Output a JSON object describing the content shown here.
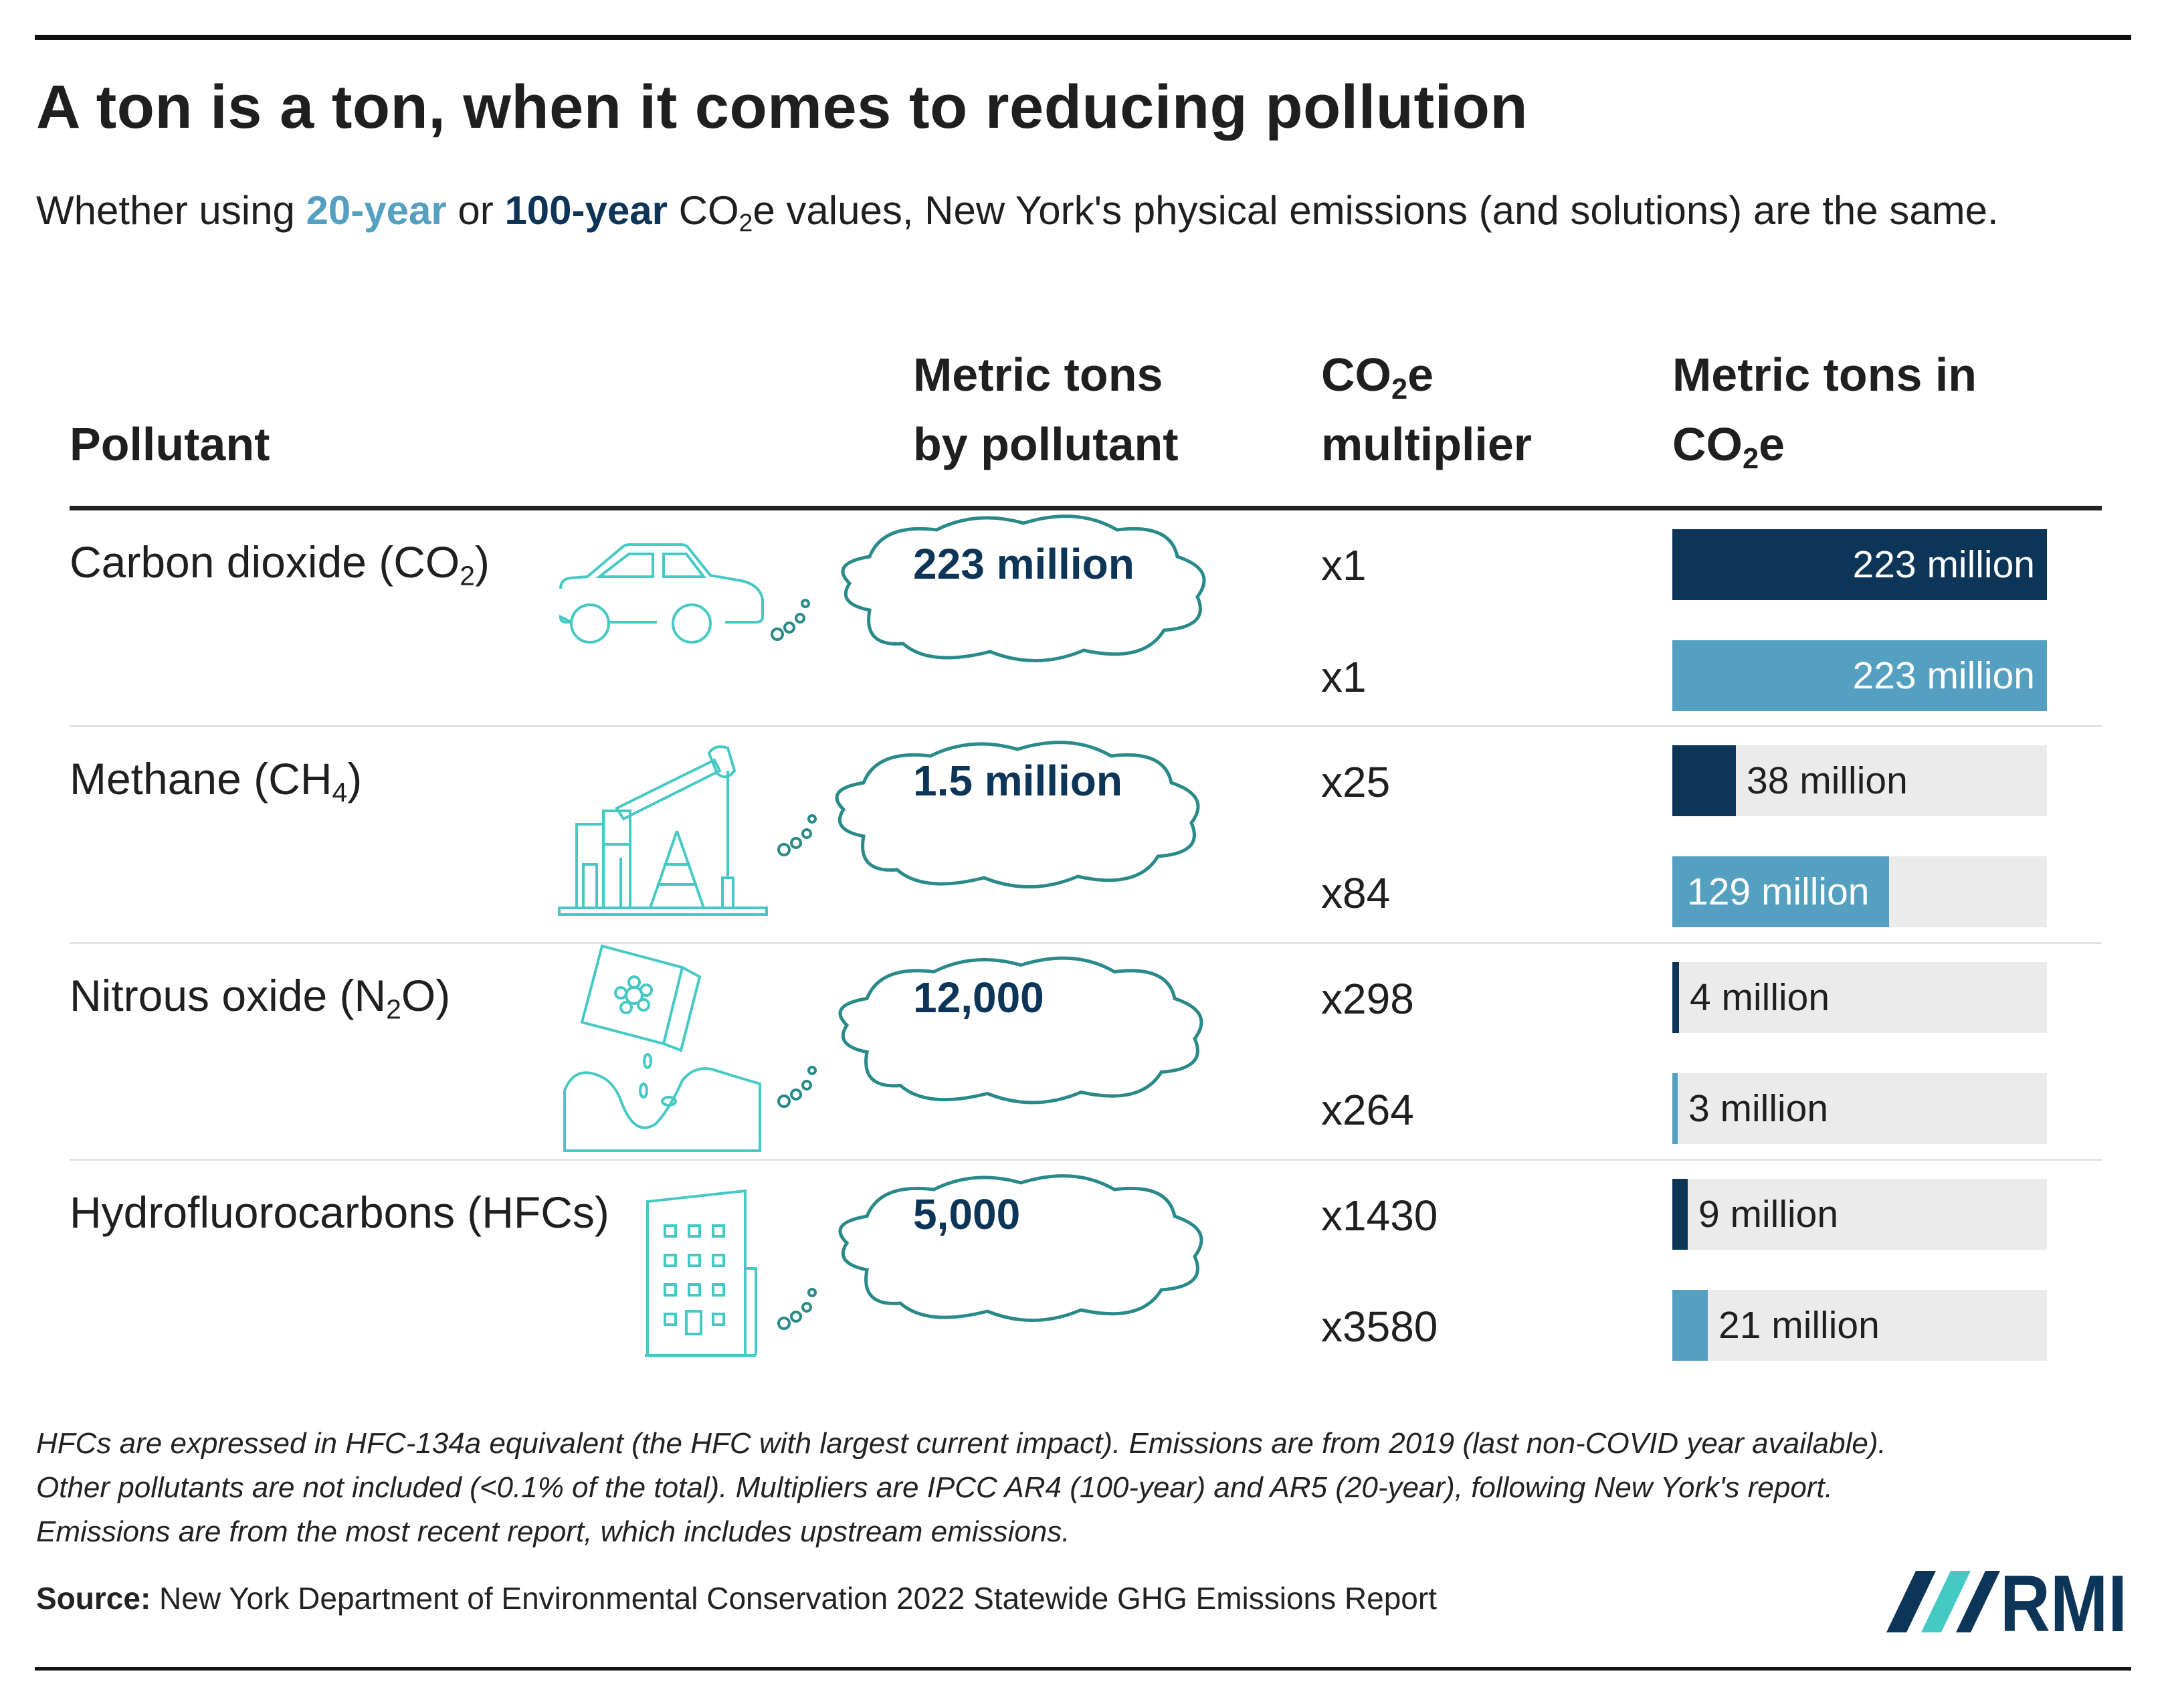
{
  "title": "A ton is a ton, when it comes to reducing pollution",
  "subtitle": {
    "prefix": "Whether using ",
    "year20": "20-year",
    "or": " or ",
    "year100": "100-year",
    "co2e_main": " CO",
    "co2e_sub": "2",
    "suffix": "e values, New York's physical emissions (and solutions) are the same."
  },
  "headers": {
    "pollutant": "Pollutant",
    "tons_line1": "Metric tons",
    "tons_line2": "by pollutant",
    "mult_main": "CO",
    "mult_sub": "2",
    "mult_suffix": "e",
    "mult_line2": "multiplier",
    "co2e_line1": "Metric tons in",
    "co2e_line2_main": "CO",
    "co2e_line2_sub": "2",
    "co2e_line2_suffix": "e"
  },
  "rows": [
    {
      "name_main": "Carbon dioxide (CO",
      "name_sub": "2",
      "name_end": ")",
      "tons": "223 million",
      "icon": "car-icon",
      "mult_100": "x1",
      "mult_20": "x1",
      "label_100": "223 million",
      "label_20": "223 million"
    },
    {
      "name_main": "Methane (CH",
      "name_sub": "4",
      "name_end": ")",
      "tons": "1.5 million",
      "icon": "oil-pump-icon",
      "mult_100": "x25",
      "mult_20": "x84",
      "label_100": "38 million",
      "label_20": "129 million"
    },
    {
      "name_main": "Nitrous oxide (N",
      "name_sub": "2",
      "name_end": "O)",
      "tons": "12,000",
      "icon": "fertilizer-icon",
      "mult_100": "x298",
      "mult_20": "x264",
      "label_100": "4 million",
      "label_20": "3 million"
    },
    {
      "name_main": "Hydrofluorocarbons (HFCs)",
      "name_sub": "",
      "name_end": "",
      "tons": "5,000",
      "icon": "building-icon",
      "mult_100": "x1430",
      "mult_20": "x3580",
      "label_100": "9 million",
      "label_20": "21 million"
    }
  ],
  "chart_data": {
    "type": "bar",
    "title": "A ton is a ton, when it comes to reducing pollution",
    "categories": [
      "Carbon dioxide (CO2)",
      "Methane (CH4)",
      "Nitrous oxide (N2O)",
      "Hydrofluorocarbons (HFCs)"
    ],
    "unit": "Metric tons in CO2e",
    "metric_tons_by_pollutant": [
      223000000,
      1500000,
      12000,
      5000
    ],
    "series": [
      {
        "name": "100-year",
        "multipliers": [
          1,
          25,
          298,
          1430
        ],
        "values": [
          223,
          38,
          4,
          9
        ]
      },
      {
        "name": "20-year",
        "multipliers": [
          1,
          84,
          264,
          3580
        ],
        "values": [
          223,
          129,
          3,
          21
        ]
      }
    ],
    "value_unit": "million",
    "xlim": [
      0,
      223
    ]
  },
  "colors": {
    "year100": "#0d3558",
    "year20": "#55a0c0",
    "icon": "#45c9c4",
    "cloud": "#2a8a8a",
    "track": "#ebebeb",
    "logo": "#0d3558"
  },
  "notes": [
    "HFCs are expressed in HFC-134a equivalent (the HFC with largest current impact). Emissions are from 2019 (last non-COVID year available).",
    "Other pollutants are not included (<0.1% of the total). Multipliers are IPCC AR4 (100-year) and AR5 (20-year), following New York's report.",
    "Emissions are from the most recent report, which includes upstream emissions."
  ],
  "source": {
    "label": "Source:",
    "text": " New York Department of Environmental Conservation 2022 Statewide GHG Emissions Report"
  },
  "logo": {
    "text": "RMI"
  }
}
